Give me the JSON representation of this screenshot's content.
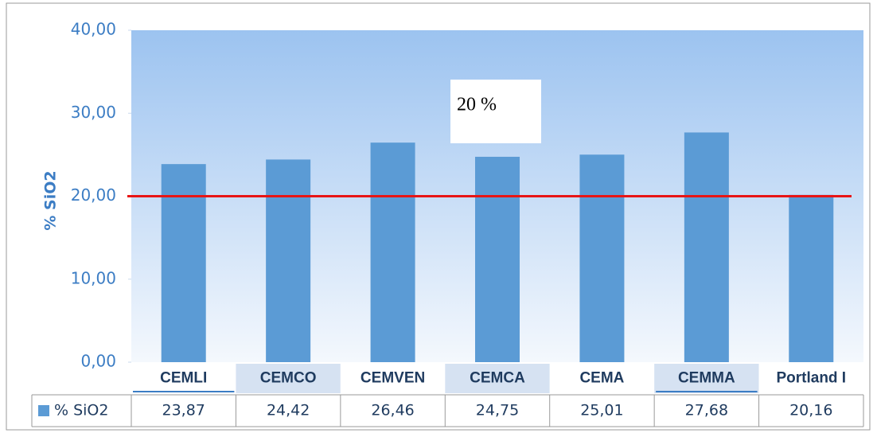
{
  "chart_data": {
    "type": "bar",
    "y_label": "% SiO2",
    "categories": [
      "CEMLI",
      "CEMCO",
      "CEMVEN",
      "CEMCA",
      "CEMA",
      "CEMMA",
      "Portland I"
    ],
    "series": [
      {
        "name": "% SiO2",
        "color": "#5b9bd5",
        "values": [
          23.87,
          24.42,
          26.46,
          24.75,
          25.01,
          27.68,
          20.16
        ],
        "value_labels": [
          "23,87",
          "24,42",
          "26,46",
          "24,75",
          "25,01",
          "27,68",
          "20,16"
        ]
      }
    ],
    "ylim": [
      0,
      40
    ],
    "yticks": [
      {
        "value": 0,
        "label": "0,00"
      },
      {
        "value": 10,
        "label": "10,00"
      },
      {
        "value": 20,
        "label": "20,00"
      },
      {
        "value": 30,
        "label": "30,00"
      },
      {
        "value": 40,
        "label": "40,00"
      }
    ],
    "reference_line": {
      "value": 20,
      "color": "#e81515"
    },
    "annotation": "20 %"
  }
}
